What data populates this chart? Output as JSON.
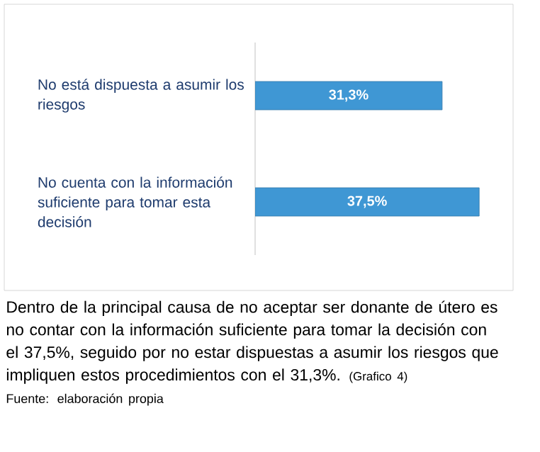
{
  "chart_data": {
    "type": "bar",
    "orientation": "horizontal",
    "categories": [
      "No está dispuesta a asumir los riesgos",
      "No cuenta con la información suficiente para tomar esta decisión"
    ],
    "values": [
      31.3,
      37.5
    ],
    "value_labels": [
      "31,3%",
      "37,5%"
    ],
    "color": "#3f97d4",
    "annotations": [
      "Dentro de la principal causa de no aceptar ser donante de útero es no contar con la información suficiente para tomar la decisión con el 37,5%, seguido por no estar dispuestas a asumir los riesgos que impliquen estos procedimientos con el 31,3%.",
      "(Grafico 4)",
      "Fuente: elaboración propia"
    ]
  }
}
